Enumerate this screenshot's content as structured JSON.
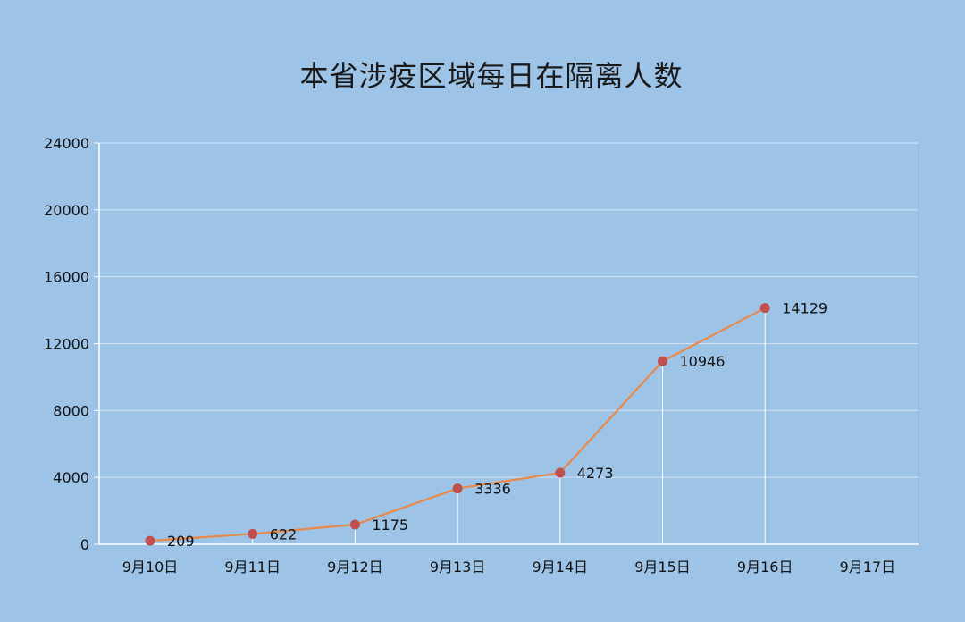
{
  "chart_data": {
    "type": "line",
    "title": "本省涉疫区域每日在隔离人数",
    "categories": [
      "9月10日",
      "9月11日",
      "9月12日",
      "9月13日",
      "9月14日",
      "9月15日",
      "9月16日",
      "9月17日"
    ],
    "series": [
      {
        "values": [
          209,
          622,
          1175,
          3336,
          4273,
          10946,
          14129,
          null
        ]
      }
    ],
    "ylim": [
      0,
      24000
    ],
    "yticks": [
      0,
      4000,
      8000,
      12000,
      16000,
      20000,
      24000
    ],
    "ytick_labels": [
      "0",
      "4000",
      "8000",
      "12000",
      "16000",
      "20000",
      "24000"
    ],
    "xlabel": "",
    "ylabel": "",
    "grid": true,
    "colors": {
      "line": "#e8894a",
      "marker": "#c0504d",
      "grid": "#cfe0f3",
      "drop_line": "#ffffff",
      "axis": "#ffffff",
      "plot_border": "#8fb4d9"
    }
  }
}
